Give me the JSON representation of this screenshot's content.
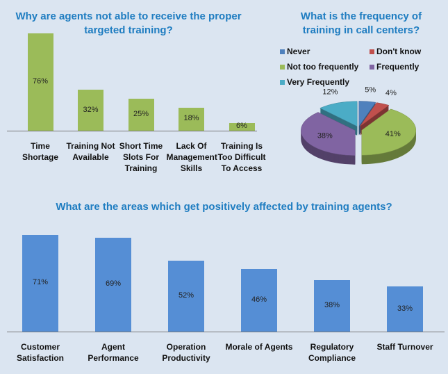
{
  "chart_data": [
    {
      "type": "bar",
      "title": "Why are agents not able to receive the proper targeted training?",
      "categories": [
        "Time Shortage",
        "Training Not Available",
        "Short Time Slots For Training",
        "Lack Of Management Skills",
        "Training Is Too Difficult To Access"
      ],
      "values": [
        76,
        32,
        25,
        18,
        6
      ],
      "value_labels": [
        "76%",
        "32%",
        "25%",
        "18%",
        "6%"
      ],
      "color": "#9bbb59"
    },
    {
      "type": "pie",
      "title": "What is the frequency of training in call centers?",
      "series": [
        {
          "name": "Never",
          "color": "#4f81bd",
          "values": [
            5
          ]
        },
        {
          "name": "Don't know",
          "color": "#c0504d",
          "values": [
            4
          ]
        },
        {
          "name": "Not too frequently",
          "color": "#9bbb59",
          "values": [
            41
          ]
        },
        {
          "name": "Frequently",
          "color": "#8064a2",
          "values": [
            38
          ]
        },
        {
          "name": "Very Frequently",
          "color": "#4bacc6",
          "values": [
            12
          ]
        }
      ],
      "value_labels": [
        "5%",
        "4%",
        "41%",
        "38%",
        "12%"
      ]
    },
    {
      "type": "bar",
      "title": "What are the areas which get positively affected by training agents?",
      "categories": [
        "Customer Satisfaction",
        "Agent Performance",
        "Operation Productivity",
        "Morale of Agents",
        "Regulatory Compliance",
        "Staff Turnover"
      ],
      "values": [
        71,
        69,
        52,
        46,
        38,
        33
      ],
      "value_labels": [
        "71%",
        "69%",
        "52%",
        "46%",
        "38%",
        "33%"
      ],
      "color": "#558ed5"
    }
  ]
}
